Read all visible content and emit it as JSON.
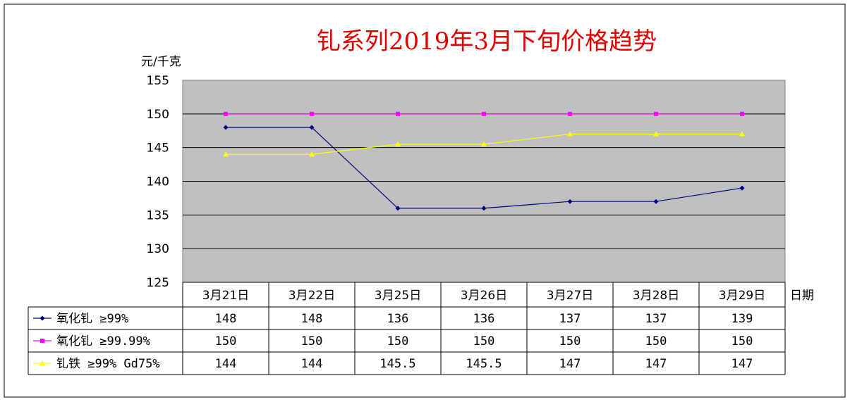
{
  "chart_data": {
    "type": "line",
    "title": "钆系列2019年3月下旬价格趋势",
    "ylabel": "元/千克",
    "xlabel": "日期",
    "ylim": [
      125,
      155
    ],
    "yticks": [
      155,
      150,
      145,
      140,
      135,
      130,
      125
    ],
    "categories": [
      "3月21日",
      "3月22日",
      "3月25日",
      "3月26日",
      "3月27日",
      "3月28日",
      "3月29日"
    ],
    "grid": true,
    "plot_background": "#c0c0c0",
    "legend": "data-table-below",
    "series": [
      {
        "name": "氧化钆 ≥99%",
        "color": "#000080",
        "marker": "diamond",
        "values": [
          148,
          148,
          136,
          136,
          137,
          137,
          139
        ],
        "labels": [
          "148",
          "148",
          "136",
          "136",
          "137",
          "137",
          "139"
        ]
      },
      {
        "name": "氧化钆 ≥99.99%",
        "color": "#ff00ff",
        "marker": "square",
        "values": [
          150,
          150,
          150,
          150,
          150,
          150,
          150
        ],
        "labels": [
          "150",
          "150",
          "150",
          "150",
          "150",
          "150",
          "150"
        ]
      },
      {
        "name": "钆铁 ≥99% Gd75%",
        "color": "#ffff00",
        "marker": "triangle",
        "values": [
          144,
          144,
          145.5,
          145.5,
          147,
          147,
          147
        ],
        "labels": [
          "144",
          "144",
          "145.5",
          "145.5",
          "147",
          "147",
          "147"
        ]
      }
    ]
  }
}
